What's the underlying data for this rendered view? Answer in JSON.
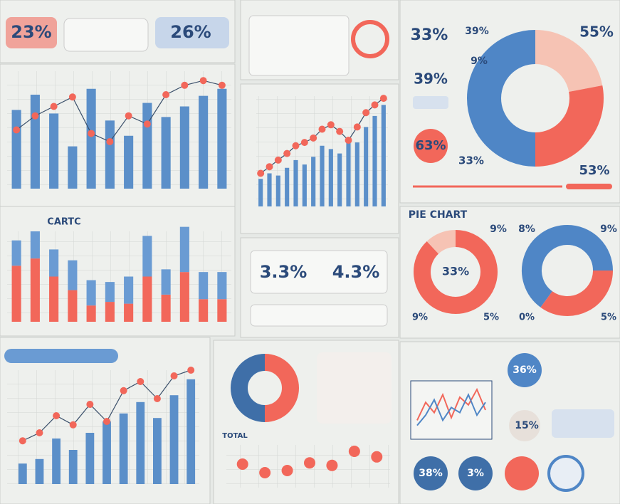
{
  "chart_data": [
    {
      "type": "combo",
      "ylim": [
        0,
        100
      ],
      "series": [
        {
          "color": "#5b8fc9",
          "values": [
            67,
            80,
            64,
            36,
            85,
            58,
            45,
            73,
            61,
            70,
            79,
            85
          ]
        },
        {
          "type": "line",
          "color": "#f2675a",
          "values": [
            50,
            62,
            70,
            78,
            47,
            40,
            62,
            55,
            80,
            88,
            92,
            88
          ]
        }
      ]
    },
    {
      "type": "combo",
      "ylim": [
        0,
        100
      ],
      "series": [
        {
          "color": "#5b8fc9",
          "values": [
            25,
            30,
            28,
            35,
            42,
            38,
            45,
            55,
            52,
            48,
            60,
            58,
            72,
            82,
            92
          ]
        },
        {
          "type": "line",
          "color": "#f2675a",
          "values": [
            30,
            36,
            42,
            48,
            55,
            58,
            62,
            70,
            74,
            68,
            60,
            72,
            85,
            92,
            98
          ]
        }
      ]
    },
    {
      "type": "stacked",
      "ylim": [
        0,
        100
      ],
      "series": [
        {
          "color": "#f2675a",
          "values": [
            62,
            70,
            50,
            35,
            18,
            22,
            20,
            50,
            30,
            55,
            25,
            25
          ]
        },
        {
          "color": "#6a9bd3",
          "values": [
            28,
            30,
            30,
            33,
            28,
            22,
            30,
            45,
            28,
            50,
            30,
            30
          ]
        }
      ]
    },
    {
      "type": "donut",
      "values": [
        22,
        28,
        50
      ],
      "colors": [
        "#f6c3b4",
        "#f2675a",
        "#4f86c6"
      ]
    },
    {
      "type": "donut",
      "values": [
        88,
        12
      ],
      "colors": [
        "#f2675a",
        "#f6c3b4"
      ]
    },
    {
      "type": "donut",
      "values": [
        25,
        35,
        40
      ],
      "colors": [
        "#4f86c6",
        "#f2675a",
        "#4f86c6"
      ]
    },
    {
      "type": "combo",
      "ylim": [
        0,
        100
      ],
      "series": [
        {
          "color": "#5b8fc9",
          "values": [
            18,
            22,
            40,
            30,
            45,
            55,
            62,
            72,
            58,
            78,
            92
          ]
        },
        {
          "type": "line",
          "color": "#f2675a",
          "values": [
            38,
            45,
            60,
            52,
            70,
            55,
            82,
            90,
            75,
            95,
            100
          ]
        }
      ]
    },
    {
      "type": "donut",
      "values": [
        50,
        50
      ],
      "colors": [
        "#f2675a",
        "#3f6fa8"
      ]
    },
    {
      "type": "dots",
      "ylim": [
        0,
        100
      ],
      "color": "#f2675a",
      "values": [
        55,
        35,
        40,
        58,
        52,
        85,
        72
      ]
    },
    {
      "type": "lines",
      "ylim": [
        0,
        100
      ],
      "series": [
        {
          "color": "#f2675a",
          "values": [
            30,
            65,
            45,
            80,
            35,
            75,
            60,
            90,
            50
          ]
        },
        {
          "color": "#4f86c6",
          "values": [
            20,
            40,
            70,
            30,
            55,
            45,
            80,
            40,
            65
          ]
        }
      ]
    }
  ],
  "annotations": [
    "23%",
    "26%",
    "33%",
    "39%",
    "55%",
    "9%",
    "39%",
    "63%",
    "33%",
    "53%",
    "PIE CHART",
    "9%",
    "8%",
    "9%",
    "33%",
    "9%",
    "5%",
    "0%",
    "5%",
    "CARTC",
    "3.3%",
    "4.3%",
    "TOTAL",
    "36%",
    "15%",
    "38%",
    "3%"
  ]
}
